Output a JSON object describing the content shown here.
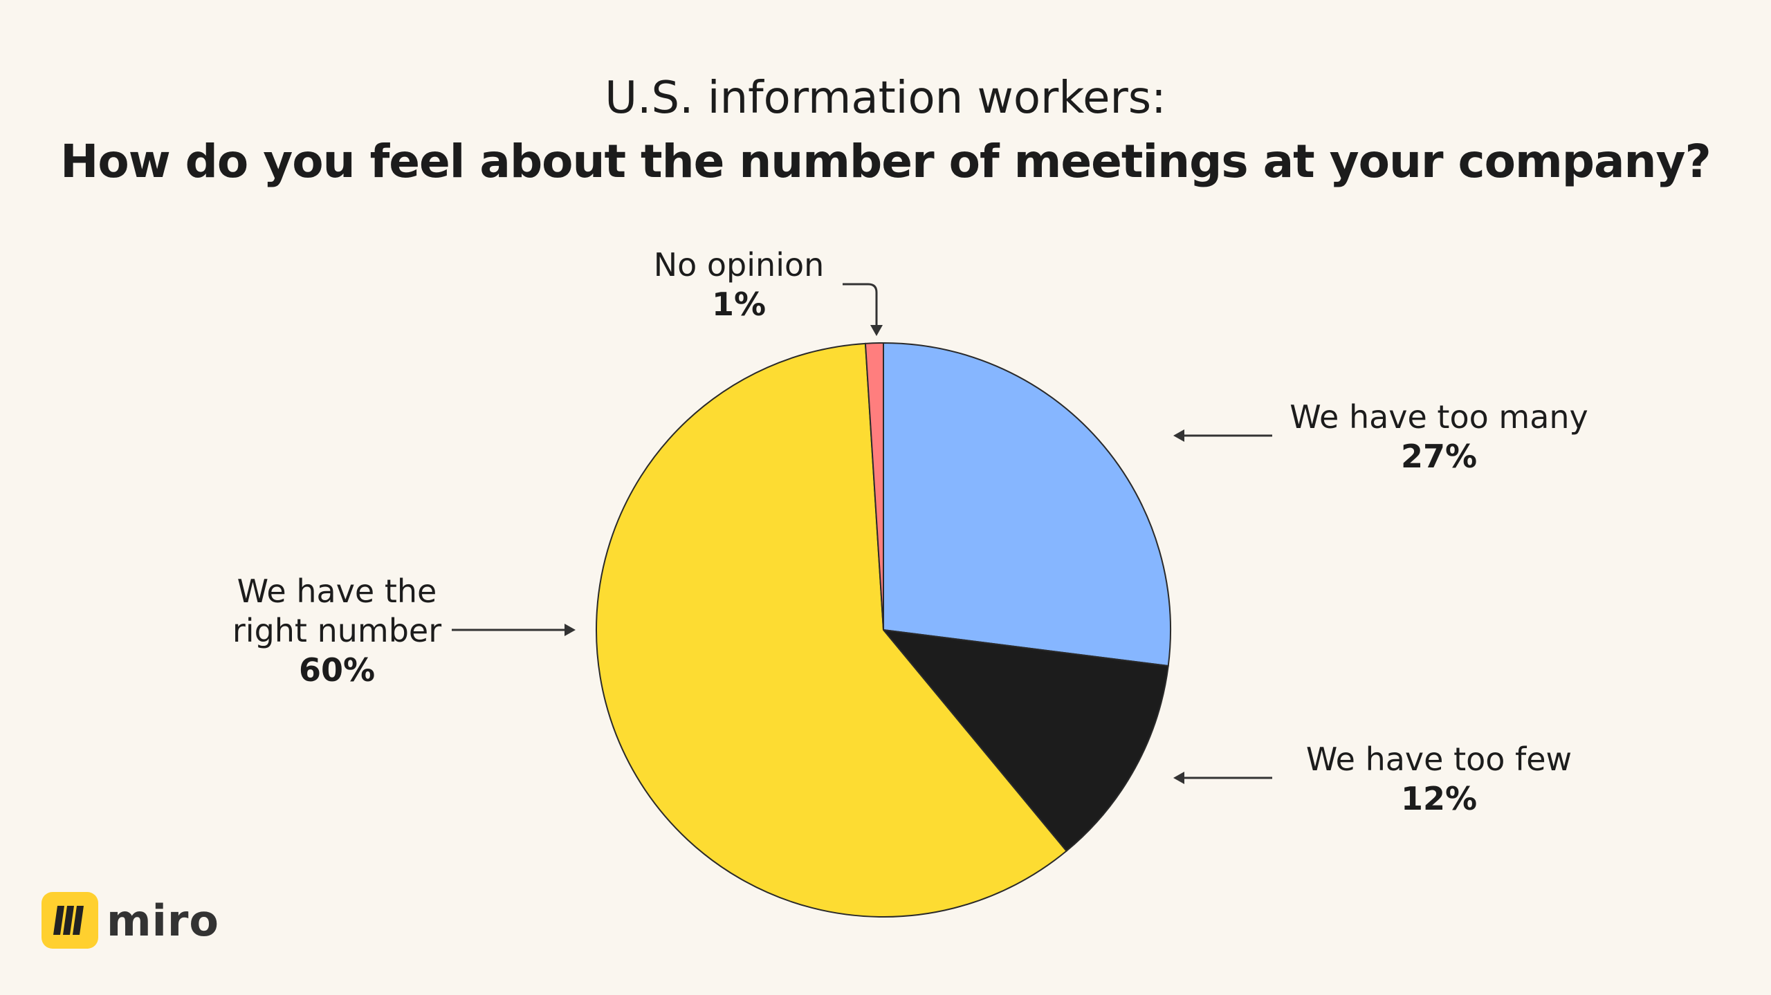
{
  "chart_data": {
    "type": "pie",
    "title": "U.S. information workers:",
    "subtitle": "How do you feel about the number of meetings at your company?",
    "start": "top, clockwise",
    "slices": [
      {
        "label": "We have too many",
        "value": 27,
        "display": "27%",
        "color": "#86B6FF"
      },
      {
        "label": "We have too few",
        "value": 12,
        "display": "12%",
        "color": "#1C1C1C"
      },
      {
        "label": "We have the right number",
        "label_lines": [
          "We have the",
          "right number"
        ],
        "value": 60,
        "display": "60%",
        "color": "#FDDC32"
      },
      {
        "label": "No opinion",
        "value": 1,
        "display": "1%",
        "color": "#FF7E7E"
      }
    ]
  },
  "brand": {
    "name": "miro",
    "color": "#FFD02F"
  }
}
